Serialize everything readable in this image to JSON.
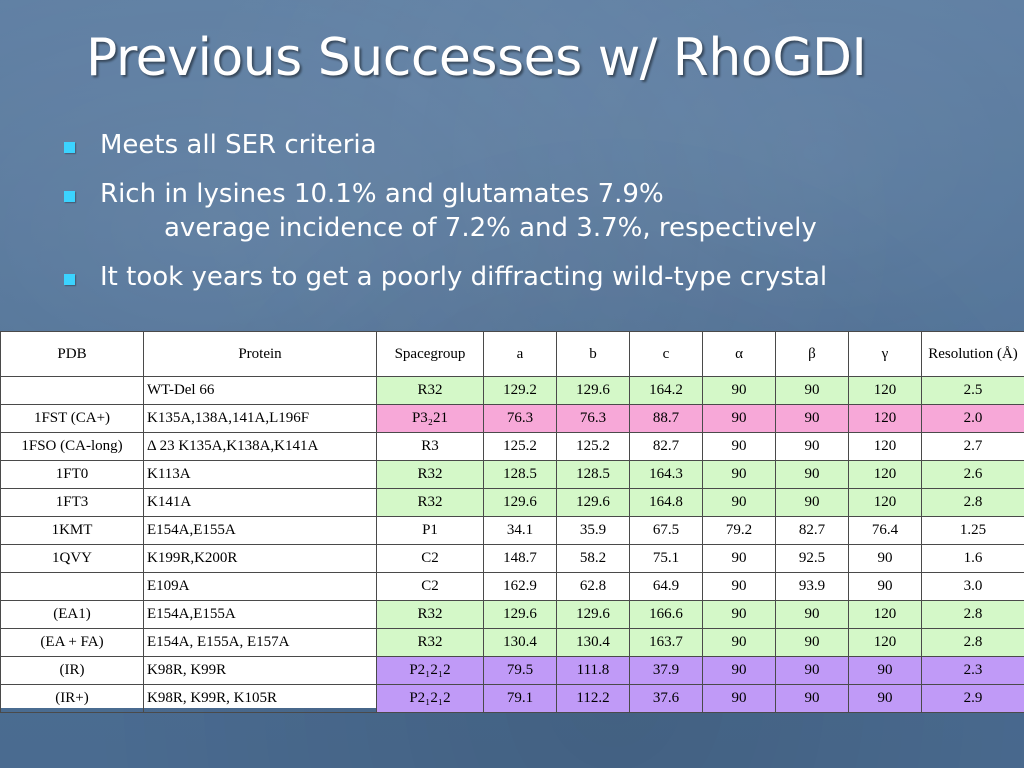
{
  "slide": {
    "title": "Previous Successes w/ RhoGDI",
    "bullets": [
      {
        "text": "Meets all SER criteria"
      },
      {
        "text": "Rich in lysines 10.1% and glutamates 7.9%",
        "sub": "average incidence of 7.2% and 3.7%, respectively"
      },
      {
        "text": "It took years to get a poorly diffracting wild-type crystal"
      }
    ]
  },
  "table": {
    "headers": [
      "PDB",
      "Protein",
      "Spacegroup",
      "a",
      "b",
      "c",
      "α",
      "β",
      "γ",
      "Resolution (Å)"
    ],
    "rows": [
      {
        "pdb": "",
        "protein": "WT-Del 66",
        "sg": "R32",
        "a": "129.2",
        "b": "129.6",
        "c": "164.2",
        "alpha": "90",
        "beta": "90",
        "gamma": "120",
        "res": "2.5",
        "color": "green"
      },
      {
        "pdb": "1FST (CA+)",
        "protein": "K135A,138A,141A,L196F",
        "sg": "P3₂21",
        "a": "76.3",
        "b": "76.3",
        "c": "88.7",
        "alpha": "90",
        "beta": "90",
        "gamma": "120",
        "res": "2.0",
        "color": "pink"
      },
      {
        "pdb": "1FSO (CA-long)",
        "protein": "Δ 23 K135A,K138A,K141A",
        "sg": "R3",
        "a": "125.2",
        "b": "125.2",
        "c": "82.7",
        "alpha": "90",
        "beta": "90",
        "gamma": "120",
        "res": "2.7",
        "color": "white"
      },
      {
        "pdb": "1FT0",
        "protein": "K113A",
        "sg": "R32",
        "a": "128.5",
        "b": "128.5",
        "c": "164.3",
        "alpha": "90",
        "beta": "90",
        "gamma": "120",
        "res": "2.6",
        "color": "green"
      },
      {
        "pdb": "1FT3",
        "protein": "K141A",
        "sg": "R32",
        "a": "129.6",
        "b": "129.6",
        "c": "164.8",
        "alpha": "90",
        "beta": "90",
        "gamma": "120",
        "res": "2.8",
        "color": "green"
      },
      {
        "pdb": "1KMT",
        "protein": "E154A,E155A",
        "sg": "P1",
        "a": "34.1",
        "b": "35.9",
        "c": "67.5",
        "alpha": "79.2",
        "beta": "82.7",
        "gamma": "76.4",
        "res": "1.25",
        "color": "white"
      },
      {
        "pdb": "1QVY",
        "protein": "K199R,K200R",
        "sg": "C2",
        "a": "148.7",
        "b": "58.2",
        "c": "75.1",
        "alpha": "90",
        "beta": "92.5",
        "gamma": "90",
        "res": "1.6",
        "color": "white"
      },
      {
        "pdb": "",
        "protein": "E109A",
        "sg": "C2",
        "a": "162.9",
        "b": "62.8",
        "c": "64.9",
        "alpha": "90",
        "beta": "93.9",
        "gamma": "90",
        "res": "3.0",
        "color": "white"
      },
      {
        "pdb": "(EA1)",
        "protein": "E154A,E155A",
        "sg": "R32",
        "a": "129.6",
        "b": "129.6",
        "c": "166.6",
        "alpha": "90",
        "beta": "90",
        "gamma": "120",
        "res": "2.8",
        "color": "green"
      },
      {
        "pdb": "(EA + FA)",
        "protein": "E154A, E155A, E157A",
        "sg": "R32",
        "a": "130.4",
        "b": "130.4",
        "c": "163.7",
        "alpha": "90",
        "beta": "90",
        "gamma": "120",
        "res": "2.8",
        "color": "green"
      },
      {
        "pdb": "(IR)",
        "protein": "K98R, K99R",
        "sg": "P2₁2₁2",
        "a": "79.5",
        "b": "111.8",
        "c": "37.9",
        "alpha": "90",
        "beta": "90",
        "gamma": "90",
        "res": "2.3",
        "color": "purple"
      },
      {
        "pdb": "(IR+)",
        "protein": "K98R, K99R, K105R",
        "sg": "P2₁2₁2",
        "a": "79.1",
        "b": "112.2",
        "c": "37.6",
        "alpha": "90",
        "beta": "90",
        "gamma": "90",
        "res": "2.9",
        "color": "purple"
      }
    ]
  },
  "colors": {
    "background": "#4f7196",
    "bullet_marker": "#3bd3ff",
    "row_green": "#d4f8c8",
    "row_pink": "#f7a8d8",
    "row_purple": "#c09af7"
  }
}
